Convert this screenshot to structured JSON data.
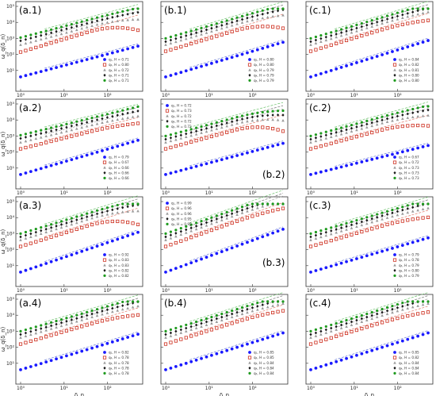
{
  "figure": {
    "xlabel": "δ_n",
    "ylabel": "ω_q(δ_n)"
  },
  "colors": {
    "q1": "#1a1aff",
    "q2": "#cc2a1a",
    "q3": "#9a9a9a",
    "q4": "#1a1a1a",
    "q5": "#1e9a1e",
    "fit_q1": "#6a7bd8",
    "fit_q2": "#e07a6a",
    "fit_q3": "#a8a8a8",
    "fit_q4": "#707070",
    "fit_q5": "#6cc26c"
  },
  "chart_data": [
    {
      "panel": "(a.1)",
      "type": "scatter",
      "xscale": "log",
      "yscale": "log",
      "xlim": [
        1,
        500
      ],
      "ylim": [
        1,
        100000
      ],
      "xticks": [
        "10⁰",
        "10¹",
        "10²"
      ],
      "yticks": [
        "10¹",
        "10²",
        "10³",
        "10⁴",
        "10⁵"
      ],
      "legend_position": "bottom-right",
      "series": [
        {
          "name": "q₁, H = 0.71",
          "offset": 0.0,
          "slope": 0.71,
          "bend": 0.0
        },
        {
          "name": "q₂, H = 0.80",
          "offset": 1.55,
          "slope": 0.8,
          "bend": 0.55
        },
        {
          "name": "q₃, H = 0.72",
          "offset": 2.0,
          "slope": 0.72,
          "bend": 0.25
        },
        {
          "name": "q₄, H = 0.71",
          "offset": 2.25,
          "slope": 0.71,
          "bend": 0.1
        },
        {
          "name": "q₅, H = 0.71",
          "offset": 2.45,
          "slope": 0.71,
          "bend": 0.05
        }
      ]
    },
    {
      "panel": "(b.1)",
      "type": "scatter",
      "xscale": "log",
      "yscale": "log",
      "xlim": [
        1,
        500
      ],
      "ylim": [
        1,
        100000
      ],
      "xticks": [
        "10⁰",
        "10¹",
        "10²"
      ],
      "yticks": [
        "10¹",
        "10²",
        "10³",
        "10⁴",
        "10⁵"
      ],
      "legend_position": "bottom-right",
      "series": [
        {
          "name": "q₁, H = 0.80",
          "offset": 0.0,
          "slope": 0.8,
          "bend": 0.0
        },
        {
          "name": "q₂, H = 0.80",
          "offset": 1.6,
          "slope": 0.8,
          "bend": 0.5
        },
        {
          "name": "q₃, H = 0.79",
          "offset": 2.0,
          "slope": 0.79,
          "bend": 0.2
        },
        {
          "name": "q₄, H = 0.79",
          "offset": 2.2,
          "slope": 0.79,
          "bend": 0.1
        },
        {
          "name": "q₅, H = 0.79",
          "offset": 2.4,
          "slope": 0.79,
          "bend": 0.05
        }
      ]
    },
    {
      "panel": "(c.1)",
      "type": "scatter",
      "xscale": "log",
      "yscale": "log",
      "xlim": [
        1,
        500
      ],
      "ylim": [
        1,
        100000
      ],
      "xticks": [
        "10⁰",
        "10¹",
        "10²"
      ],
      "yticks": [
        "10¹",
        "10²",
        "10³",
        "10⁴",
        "10⁵"
      ],
      "legend_position": "bottom-right",
      "series": [
        {
          "name": "q₁, H = 0.84",
          "offset": 0.0,
          "slope": 0.84,
          "bend": 0.0
        },
        {
          "name": "q₂, H = 0.82",
          "offset": 1.6,
          "slope": 0.82,
          "bend": 0.2
        },
        {
          "name": "q₃, H = 0.81",
          "offset": 2.0,
          "slope": 0.81,
          "bend": 0.1
        },
        {
          "name": "q₄, H = 0.80",
          "offset": 2.2,
          "slope": 0.8,
          "bend": 0.05
        },
        {
          "name": "q₅, H = 0.80",
          "offset": 2.4,
          "slope": 0.8,
          "bend": 0.0
        }
      ]
    },
    {
      "panel": "(a.2)",
      "type": "scatter",
      "xscale": "log",
      "yscale": "log",
      "xlim": [
        1,
        500
      ],
      "ylim": [
        1,
        100000
      ],
      "xticks": [
        "10⁰",
        "10¹",
        "10²"
      ],
      "yticks": [
        "10¹",
        "10²",
        "10³",
        "10⁴",
        "10⁵"
      ],
      "legend_position": "bottom-right",
      "series": [
        {
          "name": "q₁, H = 0.79",
          "offset": 0.0,
          "slope": 0.79,
          "bend": 0.0
        },
        {
          "name": "q₂, H = 0.67",
          "offset": 1.6,
          "slope": 0.67,
          "bend": 0.15
        },
        {
          "name": "q₃, H = 0.66",
          "offset": 2.0,
          "slope": 0.66,
          "bend": 0.1
        },
        {
          "name": "q₄, H = 0.66",
          "offset": 2.25,
          "slope": 0.66,
          "bend": 0.05
        },
        {
          "name": "q₅, H = 0.66",
          "offset": 2.45,
          "slope": 0.66,
          "bend": 0.0
        }
      ]
    },
    {
      "panel": "(b.2)",
      "type": "scatter",
      "xscale": "log",
      "yscale": "log",
      "xlim": [
        1,
        500
      ],
      "ylim": [
        1,
        100000
      ],
      "xticks": [
        "10⁰",
        "10¹",
        "10²"
      ],
      "yticks": [
        "10¹",
        "10²",
        "10³",
        "10⁴",
        "10⁵"
      ],
      "legend_position": "top-left",
      "series": [
        {
          "name": "q₁, H = 0.72",
          "offset": 0.0,
          "slope": 0.72,
          "bend": 0.0
        },
        {
          "name": "q₂, H = 0.73",
          "offset": 1.6,
          "slope": 0.73,
          "bend": 0.6
        },
        {
          "name": "q₃, H = 0.72",
          "offset": 2.0,
          "slope": 0.72,
          "bend": 0.4
        },
        {
          "name": "q₄, H = 0.72",
          "offset": 2.2,
          "slope": 0.72,
          "bend": 0.3
        },
        {
          "name": "q₅, H = 0.72",
          "offset": 2.4,
          "slope": 0.72,
          "bend": 0.25
        }
      ]
    },
    {
      "panel": "(c.2)",
      "type": "scatter",
      "xscale": "log",
      "yscale": "log",
      "xlim": [
        1,
        500
      ],
      "ylim": [
        1,
        100000
      ],
      "xticks": [
        "10⁰",
        "10¹",
        "10²"
      ],
      "yticks": [
        "10¹",
        "10²",
        "10³",
        "10⁴",
        "10⁵"
      ],
      "legend_position": "bottom-right",
      "series": [
        {
          "name": "q₁, H = 0.67",
          "offset": 0.0,
          "slope": 0.67,
          "bend": 0.0
        },
        {
          "name": "q₂, H = 0.72",
          "offset": 1.6,
          "slope": 0.72,
          "bend": 0.35
        },
        {
          "name": "q₃, H = 0.73",
          "offset": 2.0,
          "slope": 0.73,
          "bend": 0.2
        },
        {
          "name": "q₄, H = 0.73",
          "offset": 2.2,
          "slope": 0.73,
          "bend": 0.1
        },
        {
          "name": "q₅, H = 0.73",
          "offset": 2.4,
          "slope": 0.73,
          "bend": 0.05
        }
      ]
    },
    {
      "panel": "(a.3)",
      "type": "scatter",
      "xscale": "log",
      "yscale": "log",
      "xlim": [
        1,
        500
      ],
      "ylim": [
        1,
        100000
      ],
      "xticks": [
        "10⁰",
        "10¹",
        "10²"
      ],
      "yticks": [
        "10¹",
        "10²",
        "10³",
        "10⁴",
        "10⁵"
      ],
      "legend_position": "bottom-right",
      "series": [
        {
          "name": "q₁, H = 0.92",
          "offset": 0.0,
          "slope": 0.92,
          "bend": 0.0
        },
        {
          "name": "q₂, H = 0.83",
          "offset": 1.6,
          "slope": 0.83,
          "bend": 0.6
        },
        {
          "name": "q₃, H = 0.83",
          "offset": 2.0,
          "slope": 0.83,
          "bend": 0.3
        },
        {
          "name": "q₄, H = 0.82",
          "offset": 2.2,
          "slope": 0.82,
          "bend": 0.15
        },
        {
          "name": "q₅, H = 0.82",
          "offset": 2.4,
          "slope": 0.82,
          "bend": 0.1
        }
      ]
    },
    {
      "panel": "(b.3)",
      "type": "scatter",
      "xscale": "log",
      "yscale": "log",
      "xlim": [
        1,
        500
      ],
      "ylim": [
        1,
        100000
      ],
      "xticks": [
        "10⁰",
        "10¹",
        "10²"
      ],
      "yticks": [
        "10¹",
        "10²",
        "10³",
        "10⁴",
        "10⁵"
      ],
      "legend_position": "top-left",
      "series": [
        {
          "name": "q₁, H = 0.99",
          "offset": 0.0,
          "slope": 0.99,
          "bend": 0.0
        },
        {
          "name": "q₂, H = 0.96",
          "offset": 1.6,
          "slope": 0.96,
          "bend": 0.15
        },
        {
          "name": "q₃, H = 0.96",
          "offset": 2.0,
          "slope": 0.96,
          "bend": 0.1
        },
        {
          "name": "q₄, H = 0.95",
          "offset": 2.2,
          "slope": 0.95,
          "bend": 0.05
        },
        {
          "name": "q₅, H = 0.95",
          "offset": 2.4,
          "slope": 0.95,
          "bend": 0.0
        }
      ]
    },
    {
      "panel": "(c.3)",
      "type": "scatter",
      "xscale": "log",
      "yscale": "log",
      "xlim": [
        1,
        500
      ],
      "ylim": [
        1,
        100000
      ],
      "xticks": [
        "10⁰",
        "10¹",
        "10²"
      ],
      "yticks": [
        "10¹",
        "10²",
        "10³",
        "10⁴",
        "10⁵"
      ],
      "legend_position": "bottom-right",
      "series": [
        {
          "name": "q₁, H = 0.79",
          "offset": 0.0,
          "slope": 0.79,
          "bend": 0.0
        },
        {
          "name": "q₂, H = 0.78",
          "offset": 1.6,
          "slope": 0.78,
          "bend": 0.2
        },
        {
          "name": "q₃, H = 0.79",
          "offset": 2.0,
          "slope": 0.79,
          "bend": 0.1
        },
        {
          "name": "q₄, H = 0.80",
          "offset": 2.2,
          "slope": 0.8,
          "bend": 0.05
        },
        {
          "name": "q₅, H = 0.79",
          "offset": 2.4,
          "slope": 0.79,
          "bend": 0.0
        }
      ]
    },
    {
      "panel": "(a.4)",
      "type": "scatter",
      "xscale": "log",
      "yscale": "log",
      "xlim": [
        1,
        500
      ],
      "ylim": [
        1,
        100000
      ],
      "xticks": [
        "10⁰",
        "10¹",
        "10²"
      ],
      "yticks": [
        "10¹",
        "10²",
        "10³",
        "10⁴",
        "10⁵"
      ],
      "legend_position": "bottom-right",
      "series": [
        {
          "name": "q₁, H = 0.82",
          "offset": 0.0,
          "slope": 0.82,
          "bend": 0.0
        },
        {
          "name": "q₂, H = 0.78",
          "offset": 1.6,
          "slope": 0.78,
          "bend": 0.2
        },
        {
          "name": "q₃, H = 0.78",
          "offset": 2.0,
          "slope": 0.78,
          "bend": 0.1
        },
        {
          "name": "q₄, H = 0.78",
          "offset": 2.2,
          "slope": 0.78,
          "bend": 0.05
        },
        {
          "name": "q₅, H = 0.78",
          "offset": 2.4,
          "slope": 0.78,
          "bend": 0.0
        }
      ]
    },
    {
      "panel": "(b.4)",
      "type": "scatter",
      "xscale": "log",
      "yscale": "log",
      "xlim": [
        1,
        500
      ],
      "ylim": [
        1,
        100000
      ],
      "xticks": [
        "10⁰",
        "10¹",
        "10²"
      ],
      "yticks": [
        "10¹",
        "10²",
        "10³",
        "10⁴",
        "10⁵"
      ],
      "legend_position": "bottom-right",
      "series": [
        {
          "name": "q₁, H = 0.85",
          "offset": 0.0,
          "slope": 0.85,
          "bend": 0.0
        },
        {
          "name": "q₂, H = 0.85",
          "offset": 1.6,
          "slope": 0.85,
          "bend": 0.15
        },
        {
          "name": "q₃, H = 0.84",
          "offset": 2.0,
          "slope": 0.84,
          "bend": 0.1
        },
        {
          "name": "q₄, H = 0.84",
          "offset": 2.2,
          "slope": 0.84,
          "bend": 0.05
        },
        {
          "name": "q₅, H = 0.84",
          "offset": 2.4,
          "slope": 0.84,
          "bend": 0.0
        }
      ]
    },
    {
      "panel": "(c.4)",
      "type": "scatter",
      "xscale": "log",
      "yscale": "log",
      "xlim": [
        1,
        500
      ],
      "ylim": [
        1,
        100000
      ],
      "xticks": [
        "10⁰",
        "10¹",
        "10²"
      ],
      "yticks": [
        "10¹",
        "10²",
        "10³",
        "10⁴",
        "10⁵"
      ],
      "legend_position": "bottom-right",
      "series": [
        {
          "name": "q₁, H = 0.85",
          "offset": 0.0,
          "slope": 0.85,
          "bend": 0.0
        },
        {
          "name": "q₂, H = 0.82",
          "offset": 1.6,
          "slope": 0.82,
          "bend": 0.15
        },
        {
          "name": "q₃, H = 0.84",
          "offset": 2.0,
          "slope": 0.84,
          "bend": 0.1
        },
        {
          "name": "q₄, H = 0.84",
          "offset": 2.2,
          "slope": 0.84,
          "bend": 0.05
        },
        {
          "name": "q₅, H = 0.84",
          "offset": 2.4,
          "slope": 0.84,
          "bend": 0.0
        }
      ]
    }
  ]
}
